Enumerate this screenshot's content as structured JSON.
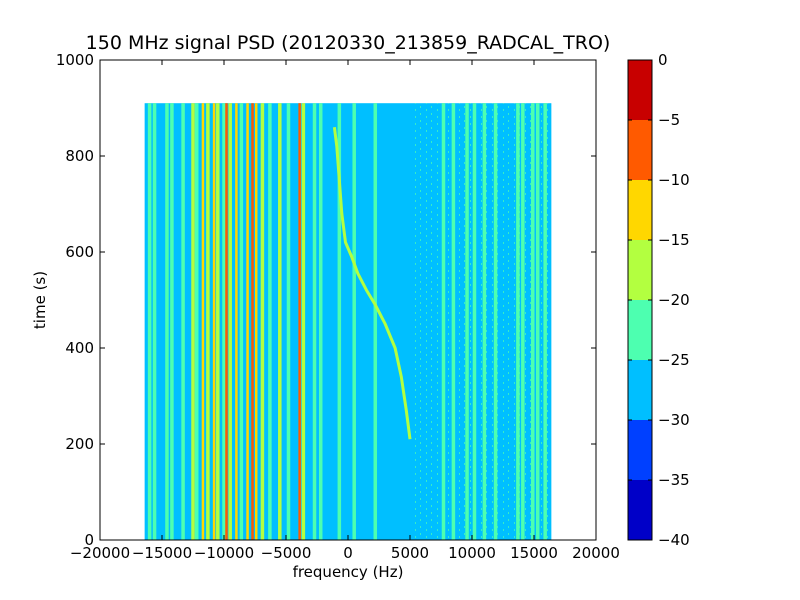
{
  "chart_data": {
    "type": "heatmap",
    "title": "150 MHz signal PSD (20120330_213859_RADCAL_TRO)",
    "xlabel": "frequency (Hz)",
    "ylabel": "time (s)",
    "xlim": [
      -20000,
      20000
    ],
    "ylim": [
      0,
      1000
    ],
    "x_ticks": [
      -20000,
      -15000,
      -10000,
      -5000,
      0,
      5000,
      10000,
      15000,
      20000
    ],
    "y_ticks": [
      0,
      200,
      400,
      600,
      800,
      1000
    ],
    "data_extent": {
      "x": [
        -16400,
        16400
      ],
      "y": [
        0,
        910
      ]
    },
    "background_level": -27.5,
    "colorbar": {
      "levels": [
        -40,
        -35,
        -30,
        -25,
        -20,
        -15,
        -10,
        -5,
        0
      ],
      "tick_labels": [
        "−40",
        "−35",
        "−30",
        "−25",
        "−20",
        "−15",
        "−10",
        "−5",
        "0"
      ],
      "colors": [
        "#0000c8",
        "#0040ff",
        "#00bfff",
        "#4dffb0",
        "#b3ff40",
        "#ffd700",
        "#ff5a00",
        "#c80000"
      ]
    },
    "vertical_lines": [
      {
        "x": -16000,
        "level": -22.5
      },
      {
        "x": -15600,
        "level": -22.5
      },
      {
        "x": -14600,
        "level": -22.5
      },
      {
        "x": -14200,
        "level": -22.5
      },
      {
        "x": -13300,
        "level": -22.5
      },
      {
        "x": -12500,
        "level": -17.5
      },
      {
        "x": -12200,
        "level": -22.5
      },
      {
        "x": -11700,
        "level": -12.5
      },
      {
        "x": -11300,
        "level": -17.5
      },
      {
        "x": -10800,
        "level": -12.5
      },
      {
        "x": -10500,
        "level": -17.5
      },
      {
        "x": -10000,
        "level": -22.5
      },
      {
        "x": -9800,
        "level": -7.5
      },
      {
        "x": -9500,
        "level": -17.5
      },
      {
        "x": -9000,
        "level": -12.5
      },
      {
        "x": -8600,
        "level": -22.5
      },
      {
        "x": -8100,
        "level": -12.5
      },
      {
        "x": -7700,
        "level": -7.5
      },
      {
        "x": -7400,
        "level": -12.5
      },
      {
        "x": -6900,
        "level": -17.5
      },
      {
        "x": -6300,
        "level": -22.5
      },
      {
        "x": -5500,
        "level": -17.5
      },
      {
        "x": -4800,
        "level": -22.5
      },
      {
        "x": -3900,
        "level": -7.5
      },
      {
        "x": -3600,
        "level": -17.5
      },
      {
        "x": -2700,
        "level": -22.5
      },
      {
        "x": -2200,
        "level": -22.5
      },
      {
        "x": -700,
        "level": -22.5
      },
      {
        "x": 500,
        "level": -22.5
      },
      {
        "x": 2200,
        "level": -22.5
      },
      {
        "x": 7700,
        "level": -22.5
      },
      {
        "x": 8500,
        "level": -22.5
      },
      {
        "x": 9600,
        "level": -22.5
      },
      {
        "x": 10200,
        "level": -22.5
      },
      {
        "x": 11000,
        "level": -22.5
      },
      {
        "x": 11900,
        "level": -22.5
      },
      {
        "x": 13700,
        "level": -22.5
      },
      {
        "x": 14100,
        "level": -22.5
      },
      {
        "x": 14900,
        "level": -22.5
      },
      {
        "x": 15300,
        "level": -22.5
      },
      {
        "x": 15900,
        "level": -22.5
      }
    ],
    "drifting_signal": {
      "level": -17.5,
      "points": [
        [
          5000,
          210
        ],
        [
          4700,
          270
        ],
        [
          4300,
          340
        ],
        [
          3800,
          400
        ],
        [
          3000,
          450
        ],
        [
          2200,
          490
        ],
        [
          1500,
          520
        ],
        [
          800,
          555
        ],
        [
          300,
          590
        ],
        [
          -200,
          620
        ],
        [
          -500,
          680
        ],
        [
          -700,
          750
        ],
        [
          -900,
          820
        ],
        [
          -1100,
          860
        ]
      ]
    }
  }
}
